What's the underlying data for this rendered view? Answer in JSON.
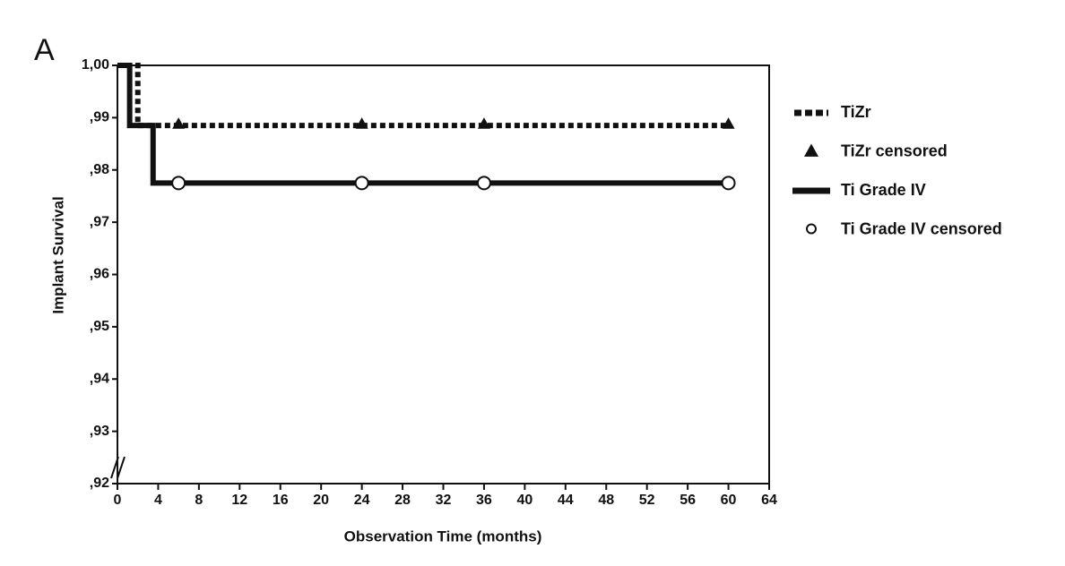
{
  "panel_label": "A",
  "chart_data": {
    "type": "line",
    "xlabel": "Observation Time (months)",
    "ylabel": "Implant Survival",
    "xlim": [
      0,
      64
    ],
    "xticks": [
      0,
      4,
      8,
      12,
      16,
      20,
      24,
      28,
      32,
      36,
      40,
      44,
      48,
      52,
      56,
      60,
      64
    ],
    "ylim": [
      0.92,
      1.0
    ],
    "yticks": [
      {
        "value": 0.92,
        "label": ",92"
      },
      {
        "value": 0.93,
        "label": ",93"
      },
      {
        "value": 0.94,
        "label": ",94"
      },
      {
        "value": 0.95,
        "label": ",95"
      },
      {
        "value": 0.96,
        "label": ",96"
      },
      {
        "value": 0.97,
        "label": ",97"
      },
      {
        "value": 0.98,
        "label": ",98"
      },
      {
        "value": 0.99,
        "label": ",99"
      },
      {
        "value": 1.0,
        "label": "1,00"
      }
    ],
    "series": [
      {
        "name": "TiZr",
        "color": "#111111",
        "style": "dashed",
        "x": [
          0,
          2,
          2,
          60
        ],
        "values": [
          1.0,
          1.0,
          0.9885,
          0.9885
        ]
      },
      {
        "name": "TiZr censored",
        "color": "#111111",
        "style": "triangle",
        "x": [
          6,
          24,
          36,
          60
        ],
        "values": [
          0.9885,
          0.9885,
          0.9885,
          0.9885
        ]
      },
      {
        "name": "Ti Grade IV",
        "color": "#111111",
        "style": "solid",
        "x": [
          0,
          1.2,
          1.2,
          3.5,
          3.5,
          60
        ],
        "values": [
          1.0,
          1.0,
          0.9885,
          0.9885,
          0.9775,
          0.9775
        ]
      },
      {
        "name": "Ti Grade IV censored",
        "color": "#111111",
        "style": "circle",
        "x": [
          6,
          24,
          36,
          60
        ],
        "values": [
          0.9775,
          0.9775,
          0.9775,
          0.9775
        ]
      }
    ]
  }
}
